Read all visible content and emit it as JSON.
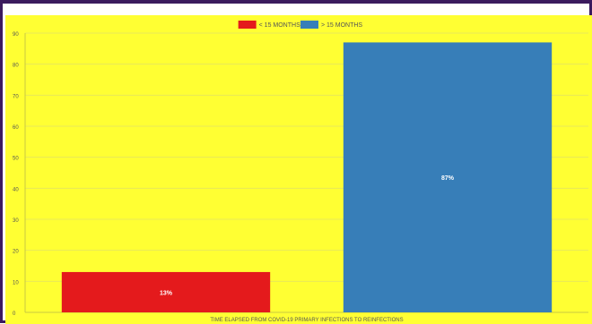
{
  "chart_data": {
    "type": "bar",
    "categories": [
      "< 15 MONTHS",
      "> 15 MONTHS"
    ],
    "values": [
      13,
      87
    ],
    "data_labels": [
      "13%",
      "87%"
    ],
    "xlabel": "TIME ELAPSED FROM COVID-19 PRIMARY INFECTIONS TO REINFECTIONS",
    "ylabel": "",
    "ylim": [
      0,
      90
    ],
    "yticks": [
      0,
      10,
      20,
      30,
      40,
      50,
      60,
      70,
      80,
      90
    ],
    "legend": {
      "placement": "top-center",
      "entries": [
        "< 15 MONTHS",
        "> 15 MONTHS"
      ]
    },
    "grid": true,
    "colors": {
      "background": "#ffff33",
      "series": [
        "#e41a1c",
        "#377eb8"
      ],
      "grid": "#e8e85a",
      "text": "#555555",
      "frame": "#3b1b5e"
    }
  }
}
